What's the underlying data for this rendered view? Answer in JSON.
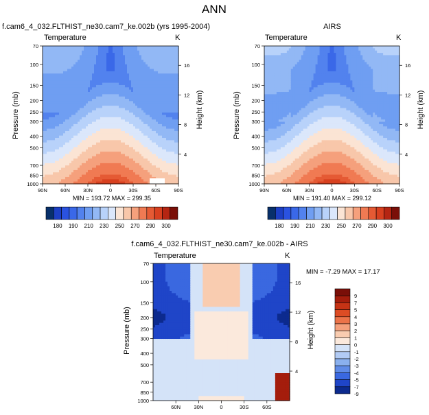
{
  "figure_title": "ANN",
  "chart_data": [
    {
      "type": "heatmap",
      "title": "f.cam6_4_032.FLTHIST_ne30.cam7_ke.002b (yrs 1995-2004)",
      "left_label": "Temperature",
      "right_label": "K",
      "ylabel": "Pressure (mb)",
      "y2label": "Height (km)",
      "x_ticks": [
        "90N",
        "60N",
        "30N",
        "0",
        "30S",
        "60S",
        "90S"
      ],
      "y_ticks": [
        "70",
        "100",
        "150",
        "200",
        "250",
        "300",
        "400",
        "500",
        "700",
        "850",
        "1000"
      ],
      "y2_ticks": [
        "16",
        "12",
        "8",
        "4"
      ],
      "stats": "MIN = 193.72  MAX = 299.35",
      "min": 193.72,
      "max": 299.35,
      "colorbar_levels": [
        170,
        180,
        185,
        190,
        200,
        210,
        220,
        230,
        240,
        250,
        260,
        270,
        280,
        290,
        295,
        300,
        310
      ],
      "colorbar_labels": [
        "180",
        "190",
        "210",
        "230",
        "250",
        "270",
        "290",
        "300"
      ]
    },
    {
      "type": "heatmap",
      "title": "AIRS",
      "left_label": "Temperature",
      "right_label": "K",
      "ylabel": "Pressure (mb)",
      "y2label": "Height (km)",
      "x_ticks": [
        "90N",
        "60N",
        "30N",
        "0",
        "30S",
        "60S",
        "90S"
      ],
      "y_ticks": [
        "70",
        "100",
        "150",
        "200",
        "250",
        "300",
        "400",
        "500",
        "700",
        "850",
        "1000"
      ],
      "y2_ticks": [
        "16",
        "12",
        "8",
        "4"
      ],
      "stats": "MIN = 191.40  MAX = 299.12",
      "min": 191.4,
      "max": 299.12,
      "colorbar_levels": [
        170,
        180,
        185,
        190,
        200,
        210,
        220,
        230,
        240,
        250,
        260,
        270,
        280,
        290,
        295,
        300,
        310
      ],
      "colorbar_labels": [
        "180",
        "190",
        "210",
        "230",
        "250",
        "270",
        "290",
        "300"
      ]
    },
    {
      "type": "heatmap",
      "title": "f.cam6_4_032.FLTHIST_ne30.cam7_ke.002b - AIRS",
      "left_label": "Temperature",
      "right_label": "K",
      "ylabel": "Pressure (mb)",
      "y2label": "Height (km)",
      "x_ticks": [
        "60N",
        "30N",
        "0",
        "30S",
        "60S"
      ],
      "y_ticks": [
        "70",
        "100",
        "150",
        "200",
        "250",
        "300",
        "400",
        "500",
        "700",
        "850",
        "1000"
      ],
      "y2_ticks": [
        "16",
        "12",
        "8",
        "4"
      ],
      "stats": "MIN = -7.29  MAX = 17.17",
      "min": -7.29,
      "max": 17.17,
      "colorbar_labels": [
        "9",
        "7",
        "5",
        "4",
        "3",
        "2",
        "1",
        "0",
        "-1",
        "-2",
        "-3",
        "-4",
        "-5",
        "-7",
        "-9"
      ]
    }
  ]
}
